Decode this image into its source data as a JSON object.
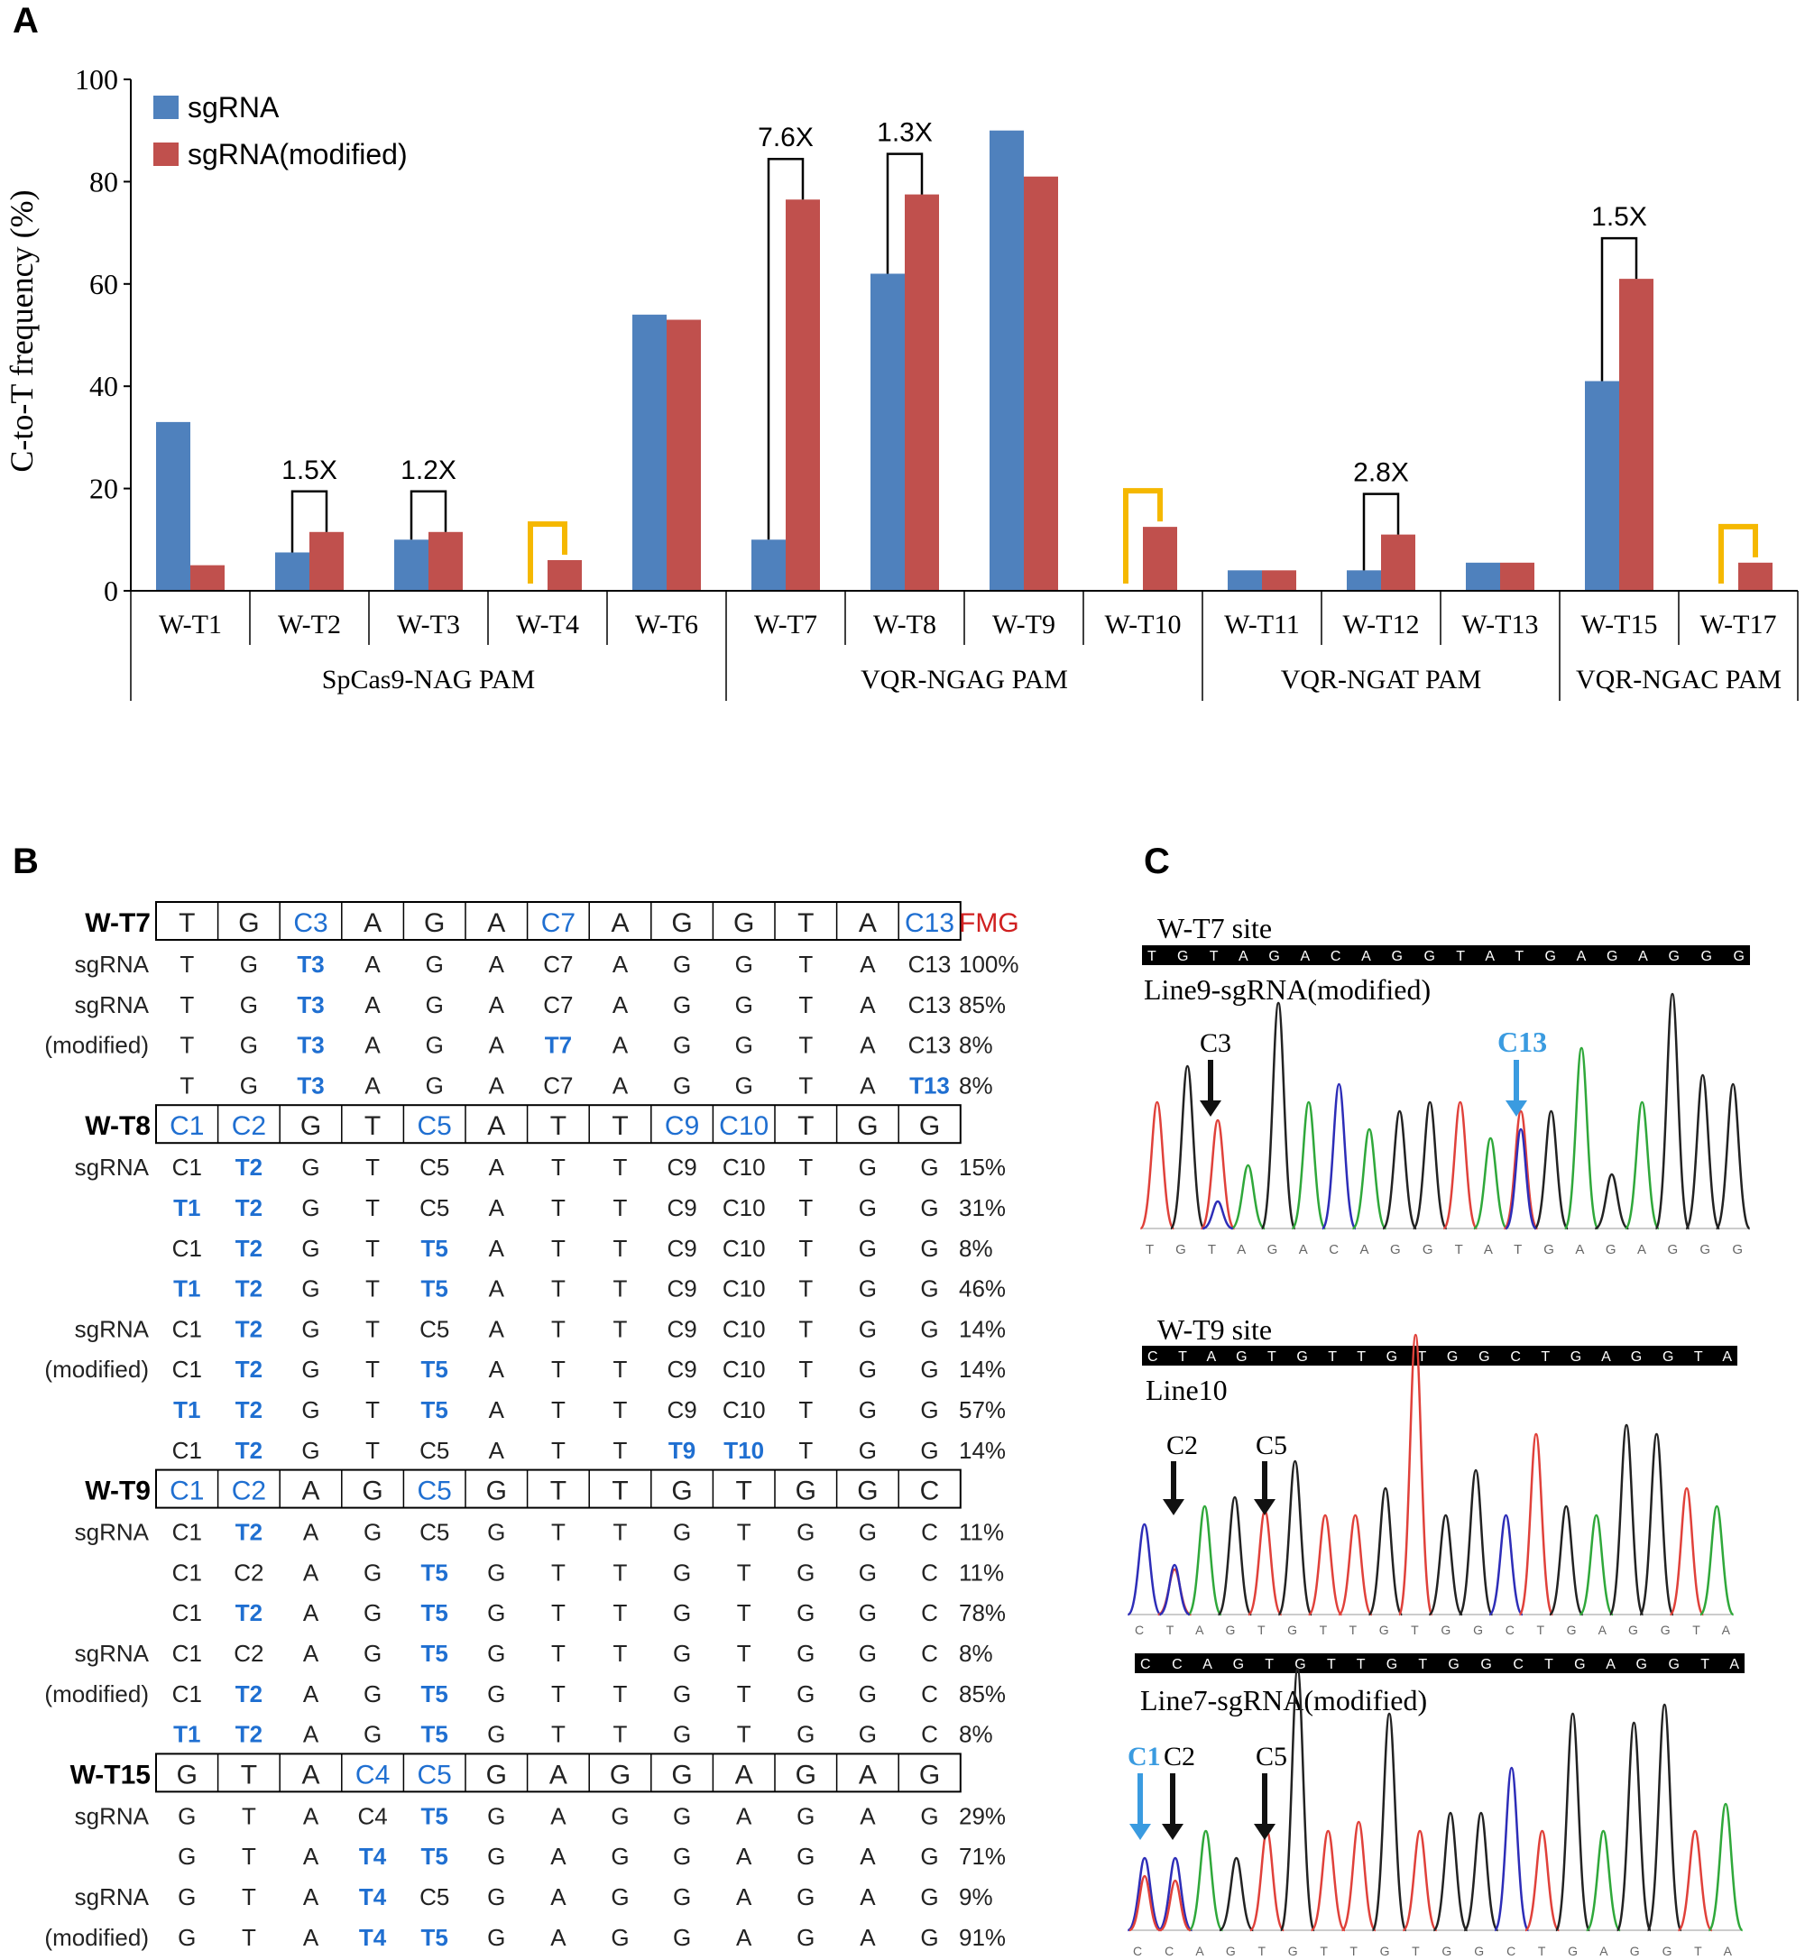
{
  "panels": {
    "a": "A",
    "b": "B",
    "c": "C"
  },
  "colors": {
    "series1": "#4F81BD",
    "series2": "#C0504D",
    "bracket": "#F5B800",
    "edited": "#1F6FD1",
    "axis": "#000000",
    "fmg": "#D02020"
  },
  "chart_data": {
    "type": "bar",
    "title": "",
    "xlabel": "",
    "ylabel": "C-to-T frequency (%)",
    "ylim": [
      0,
      100
    ],
    "yticks": [
      "0",
      "20",
      "40",
      "60",
      "80",
      "100"
    ],
    "categories": [
      "W-T1",
      "W-T2",
      "W-T3",
      "W-T4",
      "W-T6",
      "W-T7",
      "W-T8",
      "W-T9",
      "W-T10",
      "W-T11",
      "W-T12",
      "W-T13",
      "W-T15",
      "W-T17"
    ],
    "groups": [
      {
        "label": "SpCas9-NAG PAM",
        "count": 5
      },
      {
        "label": "VQR-NGAG PAM",
        "count": 4
      },
      {
        "label": "VQR-NGAT PAM",
        "count": 3
      },
      {
        "label": "VQR-NGAC PAM",
        "count": 2
      }
    ],
    "series": [
      {
        "name": "sgRNA",
        "values": [
          33,
          7.5,
          10,
          0,
          54,
          10,
          62,
          90,
          0,
          4,
          4,
          5.5,
          41,
          0
        ]
      },
      {
        "name": "sgRNA(modified)",
        "values": [
          5,
          11.5,
          11.5,
          6,
          53,
          76.5,
          77.5,
          81,
          12.5,
          4,
          11,
          5.5,
          61,
          5.5
        ]
      }
    ],
    "fold_annotations": [
      {
        "category": "W-T2",
        "label": "1.5X"
      },
      {
        "category": "W-T3",
        "label": "1.2X"
      },
      {
        "category": "W-T7",
        "label": "7.6X"
      },
      {
        "category": "W-T8",
        "label": "1.3X"
      },
      {
        "category": "W-T12",
        "label": "2.8X"
      },
      {
        "category": "W-T15",
        "label": "1.5X"
      }
    ],
    "new_editing_markers": [
      "W-T4",
      "W-T10",
      "W-T17"
    ],
    "legend_position": "top-left"
  },
  "table": {
    "fmg_label": "FMG",
    "sites": [
      {
        "name": "W-T7",
        "ref": [
          "T",
          "G",
          "C3",
          "A",
          "G",
          "A",
          "C7",
          "A",
          "G",
          "G",
          "T",
          "A",
          "C13"
        ],
        "ref_highlight": [
          2,
          6,
          12
        ],
        "rows": [
          {
            "label": "sgRNA",
            "seq": [
              "T",
              "G",
              "T3",
              "A",
              "G",
              "A",
              "C7",
              "A",
              "G",
              "G",
              "T",
              "A",
              "C13"
            ],
            "edited": [
              2
            ],
            "pct": "100%"
          },
          {
            "label": "sgRNA",
            "seq": [
              "T",
              "G",
              "T3",
              "A",
              "G",
              "A",
              "C7",
              "A",
              "G",
              "G",
              "T",
              "A",
              "C13"
            ],
            "edited": [
              2
            ],
            "pct": "85%"
          },
          {
            "label": "(modified)",
            "seq": [
              "T",
              "G",
              "T3",
              "A",
              "G",
              "A",
              "T7",
              "A",
              "G",
              "G",
              "T",
              "A",
              "C13"
            ],
            "edited": [
              2,
              6
            ],
            "pct": "8%"
          },
          {
            "label": "",
            "seq": [
              "T",
              "G",
              "T3",
              "A",
              "G",
              "A",
              "C7",
              "A",
              "G",
              "G",
              "T",
              "A",
              "T13"
            ],
            "edited": [
              2,
              12
            ],
            "pct": "8%"
          }
        ]
      },
      {
        "name": "W-T8",
        "ref": [
          "C1",
          "C2",
          "G",
          "T",
          "C5",
          "A",
          "T",
          "T",
          "C9",
          "C10",
          "T",
          "G",
          "G"
        ],
        "ref_highlight": [
          0,
          1,
          4,
          8,
          9
        ],
        "rows": [
          {
            "label": "sgRNA",
            "seq": [
              "C1",
              "T2",
              "G",
              "T",
              "C5",
              "A",
              "T",
              "T",
              "C9",
              "C10",
              "T",
              "G",
              "G"
            ],
            "edited": [
              1
            ],
            "pct": "15%"
          },
          {
            "label": "",
            "seq": [
              "T1",
              "T2",
              "G",
              "T",
              "C5",
              "A",
              "T",
              "T",
              "C9",
              "C10",
              "T",
              "G",
              "G"
            ],
            "edited": [
              0,
              1
            ],
            "pct": "31%"
          },
          {
            "label": "",
            "seq": [
              "C1",
              "T2",
              "G",
              "T",
              "T5",
              "A",
              "T",
              "T",
              "C9",
              "C10",
              "T",
              "G",
              "G"
            ],
            "edited": [
              1,
              4
            ],
            "pct": "8%"
          },
          {
            "label": "",
            "seq": [
              "T1",
              "T2",
              "G",
              "T",
              "T5",
              "A",
              "T",
              "T",
              "C9",
              "C10",
              "T",
              "G",
              "G"
            ],
            "edited": [
              0,
              1,
              4
            ],
            "pct": "46%"
          },
          {
            "label": "sgRNA",
            "seq": [
              "C1",
              "T2",
              "G",
              "T",
              "C5",
              "A",
              "T",
              "T",
              "C9",
              "C10",
              "T",
              "G",
              "G"
            ],
            "edited": [
              1
            ],
            "pct": "14%"
          },
          {
            "label": "(modified)",
            "seq": [
              "C1",
              "T2",
              "G",
              "T",
              "T5",
              "A",
              "T",
              "T",
              "C9",
              "C10",
              "T",
              "G",
              "G"
            ],
            "edited": [
              1,
              4
            ],
            "pct": "14%"
          },
          {
            "label": "",
            "seq": [
              "T1",
              "T2",
              "G",
              "T",
              "T5",
              "A",
              "T",
              "T",
              "C9",
              "C10",
              "T",
              "G",
              "G"
            ],
            "edited": [
              0,
              1,
              4
            ],
            "pct": "57%"
          },
          {
            "label": "",
            "seq": [
              "C1",
              "T2",
              "G",
              "T",
              "C5",
              "A",
              "T",
              "T",
              "T9",
              "T10",
              "T",
              "G",
              "G"
            ],
            "edited": [
              1,
              8,
              9
            ],
            "pct": "14%"
          }
        ]
      },
      {
        "name": "W-T9",
        "ref": [
          "C1",
          "C2",
          "A",
          "G",
          "C5",
          "G",
          "T",
          "T",
          "G",
          "T",
          "G",
          "G",
          "C"
        ],
        "ref_highlight": [
          0,
          1,
          4
        ],
        "rows": [
          {
            "label": "sgRNA",
            "seq": [
              "C1",
              "T2",
              "A",
              "G",
              "C5",
              "G",
              "T",
              "T",
              "G",
              "T",
              "G",
              "G",
              "C"
            ],
            "edited": [
              1
            ],
            "pct": "11%"
          },
          {
            "label": "",
            "seq": [
              "C1",
              "C2",
              "A",
              "G",
              "T5",
              "G",
              "T",
              "T",
              "G",
              "T",
              "G",
              "G",
              "C"
            ],
            "edited": [
              4
            ],
            "pct": "11%"
          },
          {
            "label": "",
            "seq": [
              "C1",
              "T2",
              "A",
              "G",
              "T5",
              "G",
              "T",
              "T",
              "G",
              "T",
              "G",
              "G",
              "C"
            ],
            "edited": [
              1,
              4
            ],
            "pct": "78%"
          },
          {
            "label": "sgRNA",
            "seq": [
              "C1",
              "C2",
              "A",
              "G",
              "T5",
              "G",
              "T",
              "T",
              "G",
              "T",
              "G",
              "G",
              "C"
            ],
            "edited": [
              4
            ],
            "pct": "8%"
          },
          {
            "label": "(modified)",
            "seq": [
              "C1",
              "T2",
              "A",
              "G",
              "T5",
              "G",
              "T",
              "T",
              "G",
              "T",
              "G",
              "G",
              "C"
            ],
            "edited": [
              1,
              4
            ],
            "pct": "85%"
          },
          {
            "label": "",
            "seq": [
              "T1",
              "T2",
              "A",
              "G",
              "T5",
              "G",
              "T",
              "T",
              "G",
              "T",
              "G",
              "G",
              "C"
            ],
            "edited": [
              0,
              1,
              4
            ],
            "pct": "8%"
          }
        ]
      },
      {
        "name": "W-T15",
        "ref": [
          "G",
          "T",
          "A",
          "C4",
          "C5",
          "G",
          "A",
          "G",
          "G",
          "A",
          "G",
          "A",
          "G"
        ],
        "ref_highlight": [
          3,
          4
        ],
        "rows": [
          {
            "label": "sgRNA",
            "seq": [
              "G",
              "T",
              "A",
              "C4",
              "T5",
              "G",
              "A",
              "G",
              "G",
              "A",
              "G",
              "A",
              "G"
            ],
            "edited": [
              4
            ],
            "pct": "29%"
          },
          {
            "label": "",
            "seq": [
              "G",
              "T",
              "A",
              "T4",
              "T5",
              "G",
              "A",
              "G",
              "G",
              "A",
              "G",
              "A",
              "G"
            ],
            "edited": [
              3,
              4
            ],
            "pct": "71%"
          },
          {
            "label": "sgRNA",
            "seq": [
              "G",
              "T",
              "A",
              "T4",
              "C5",
              "G",
              "A",
              "G",
              "G",
              "A",
              "G",
              "A",
              "G"
            ],
            "edited": [
              3
            ],
            "pct": "9%"
          },
          {
            "label": "(modified)",
            "seq": [
              "G",
              "T",
              "A",
              "T4",
              "T5",
              "G",
              "A",
              "G",
              "G",
              "A",
              "G",
              "A",
              "G"
            ],
            "edited": [
              3,
              4
            ],
            "pct": "91%"
          }
        ]
      }
    ]
  },
  "chromatograms": {
    "t7": {
      "site_label": "W-T7 site",
      "ref_bar": "T G T A G A C A G G T A T G A G A G G G",
      "line_label": "Line9-sgRNA(modified)",
      "arrows": [
        {
          "label": "C3",
          "color": "black"
        },
        {
          "label": "C13",
          "color": "blue"
        }
      ],
      "bottom_seq": "T G T A G A C A G G T A T G A G A G G G"
    },
    "t9": {
      "site_label": "W-T9 site",
      "ref_bar": "C T A G T G T T G T G G C T G A G G T A",
      "line_label": "Line10",
      "arrows": [
        {
          "label": "C2",
          "color": "black"
        },
        {
          "label": "C5",
          "color": "black"
        }
      ],
      "bottom_seq": "C T A G T G T T G T G G C T G A G G T A"
    },
    "t9b": {
      "ref_bar": "C C A G T G T T G T G G C T G A G G T A",
      "line_label": "Line7-sgRNA(modified)",
      "arrows": [
        {
          "label": "C1",
          "color": "blue"
        },
        {
          "label": "C2",
          "color": "black"
        },
        {
          "label": "C5",
          "color": "black"
        }
      ],
      "bottom_seq": "C C A G T G T T G T G G C T G A G G T A"
    }
  }
}
